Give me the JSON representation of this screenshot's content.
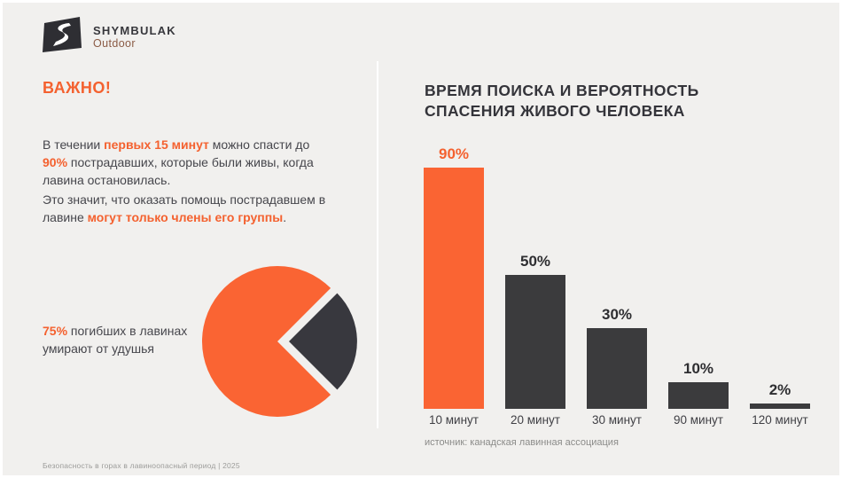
{
  "logo": {
    "brand": "SHYMBULAK",
    "sub": "Outdoor"
  },
  "left": {
    "heading": "ВАЖНО!",
    "para1": {
      "pre": "В течении ",
      "hl1": "первых 15 минут",
      "mid": " можно спасти до ",
      "hl2": "90%",
      "post": " пострадавших, которые были живы, когда лавина остановилась."
    },
    "para2": {
      "pre": "Это значит, что оказать помощь пострадавшем в лавине ",
      "hl": "могут только члены его группы",
      "post": "."
    },
    "stat": {
      "hl": "75%",
      "text": " погибших в лавинах умирают от удушья"
    }
  },
  "right": {
    "title_line1": "ВРЕМЯ ПОИСКА И ВЕРОЯТНОСТЬ",
    "title_line2": "СПАСЕНИЯ ЖИВОГО ЧЕЛОВЕКА",
    "source": "источник: канадская лавинная ассоциация"
  },
  "footer": "Безопасность в горах в лавиноопасный период | 2025",
  "colors": {
    "background": "#F1F0EE",
    "accent_orange": "#FA6433",
    "accent_orange_text": "#F4612F",
    "dark": "#3B3B3D",
    "body_text": "#46464C",
    "muted_text": "#8B8B89",
    "brand_sub": "#8B5B45"
  },
  "chart_data": [
    {
      "type": "bar",
      "title": "ВРЕМЯ ПОИСКА И ВЕРОЯТНОСТЬ СПАСЕНИЯ ЖИВОГО ЧЕЛОВЕКА",
      "categories": [
        "10 минут",
        "20 минут",
        "30 минут",
        "90 минут",
        "120 минут"
      ],
      "values": [
        90,
        50,
        30,
        10,
        2
      ],
      "data_labels": [
        "90%",
        "50%",
        "30%",
        "10%",
        "2%"
      ],
      "bar_colors": [
        "#FA6433",
        "#3B3B3D",
        "#3B3B3D",
        "#3B3B3D",
        "#3B3B3D"
      ],
      "label_colors": [
        "#F4612F",
        "#2E2E31",
        "#2E2E31",
        "#2E2E31",
        "#2E2E31"
      ],
      "xlabel": "",
      "ylabel": "",
      "ylim": [
        0,
        90
      ],
      "grid": false,
      "legend": false,
      "source": "источник: канадская лавинная ассоциация"
    },
    {
      "type": "pie",
      "title": "75% погибших в лавинах умирают от удушья",
      "slices": [
        {
          "label": "погибших в лавинах умирают от удушья",
          "value": 75,
          "color": "#FA6433",
          "exploded": false
        },
        {
          "label": "",
          "value": 25,
          "color": "#38383E",
          "exploded": true
        }
      ],
      "legend": false
    }
  ]
}
